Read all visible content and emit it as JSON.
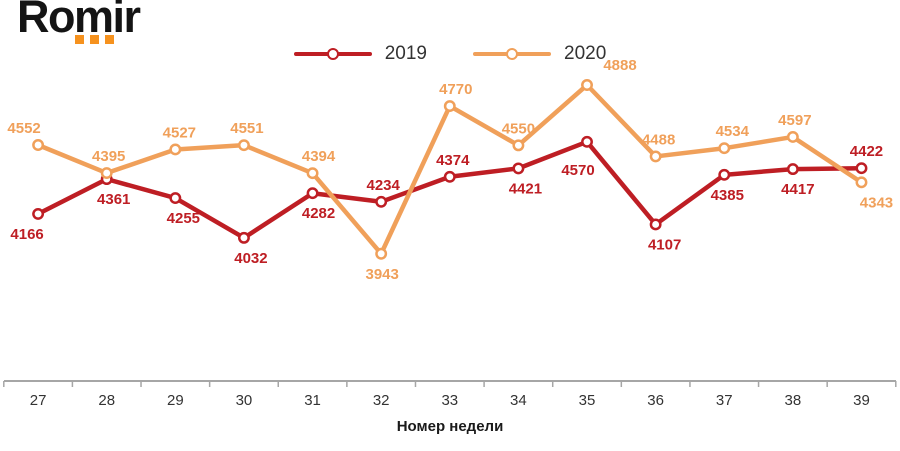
{
  "logo": {
    "text": "Romir",
    "text_color": "#141414",
    "squares_color": "#f6921e"
  },
  "legend": {
    "items": [
      {
        "label": "2019",
        "color": "#be1e24"
      },
      {
        "label": "2020",
        "color": "#f0a05a"
      }
    ]
  },
  "chart_data": {
    "type": "line",
    "title": "",
    "x": [
      27,
      28,
      29,
      30,
      31,
      32,
      33,
      34,
      35,
      36,
      37,
      38,
      39
    ],
    "xlabel": "Номер недели",
    "ylabel": "",
    "ylim": [
      3900,
      4950
    ],
    "grid": false,
    "y_axis_visible": false,
    "legend_position": "top-center",
    "axis_color": "#a6a6a6",
    "tick_label_color": "#333333",
    "xlabel_color": "#1a1a1a",
    "series": [
      {
        "name": "2019",
        "color": "#be1e24",
        "values": [
          4166,
          4361,
          4255,
          4032,
          4282,
          4234,
          4374,
          4421,
          4570,
          4107,
          4385,
          4417,
          4422
        ],
        "label_side": [
          "below",
          "below",
          "below",
          "below",
          "below",
          "above",
          "above",
          "below",
          "below",
          "below",
          "below",
          "below",
          "above"
        ],
        "label_dx": [
          -11,
          7,
          8,
          7,
          6,
          2,
          3,
          7,
          -9,
          9,
          3,
          5,
          5
        ],
        "label_dy": [
          0,
          0,
          0,
          0,
          0,
          0,
          0,
          0,
          8,
          0,
          0,
          0,
          0
        ]
      },
      {
        "name": "2020",
        "color": "#f0a05a",
        "values": [
          4552,
          4395,
          4527,
          4551,
          4394,
          3943,
          4770,
          4550,
          4888,
          4488,
          4534,
          4597,
          4343
        ],
        "label_side": [
          "above",
          "above",
          "above",
          "above",
          "above",
          "below",
          "above",
          "above",
          "above",
          "above",
          "above",
          "above",
          "below"
        ],
        "label_dx": [
          -14,
          2,
          4,
          3,
          6,
          1,
          6,
          0,
          33,
          3,
          8,
          2,
          15
        ],
        "label_dy": [
          0,
          0,
          0,
          0,
          0,
          0,
          0,
          0,
          -3,
          0,
          0,
          0,
          0
        ]
      }
    ]
  }
}
